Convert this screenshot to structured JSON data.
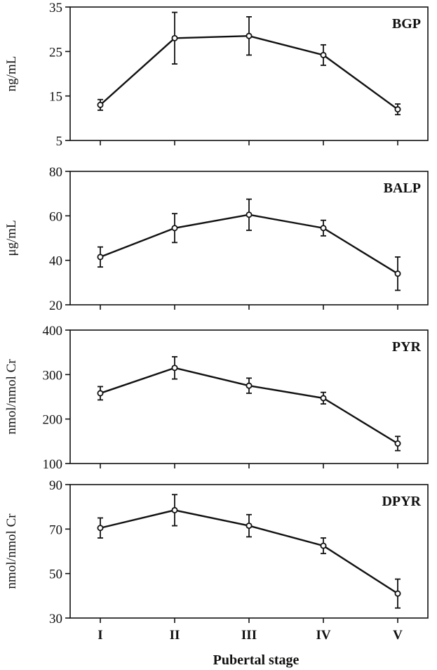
{
  "chart_data": [
    {
      "type": "line",
      "title": "BGP",
      "ylabel": "ng/mL",
      "ylim": [
        5,
        35
      ],
      "yticks": [
        5,
        15,
        25,
        35
      ],
      "categories": [
        "I",
        "II",
        "III",
        "IV",
        "V"
      ],
      "values": [
        13,
        28,
        28.5,
        24.2,
        12
      ],
      "errors": [
        1.2,
        5.8,
        4.3,
        2.3,
        1.2
      ]
    },
    {
      "type": "line",
      "title": "BALP",
      "ylabel": "μg/mL",
      "ylim": [
        20,
        80
      ],
      "yticks": [
        20,
        40,
        60,
        80
      ],
      "categories": [
        "I",
        "II",
        "III",
        "IV",
        "V"
      ],
      "values": [
        41.5,
        54.5,
        60.5,
        54.5,
        34
      ],
      "errors": [
        4.5,
        6.5,
        7,
        3.5,
        7.5
      ]
    },
    {
      "type": "line",
      "title": "PYR",
      "ylabel": "nmol/nmol Cr",
      "ylim": [
        100,
        400
      ],
      "yticks": [
        100,
        200,
        300,
        400
      ],
      "categories": [
        "I",
        "II",
        "III",
        "IV",
        "V"
      ],
      "values": [
        258,
        315,
        275,
        247,
        145
      ],
      "errors": [
        15,
        25,
        17,
        13,
        16
      ]
    },
    {
      "type": "line",
      "title": "DPYR",
      "ylabel": "nmol/nmol Cr",
      "ylim": [
        30,
        90
      ],
      "yticks": [
        30,
        50,
        70,
        90
      ],
      "categories": [
        "I",
        "II",
        "III",
        "IV",
        "V"
      ],
      "values": [
        70.5,
        78.5,
        71.5,
        62.5,
        41
      ],
      "errors": [
        4.5,
        7,
        5,
        3.5,
        6.5
      ]
    }
  ],
  "xlabel": "Pubertal stage"
}
